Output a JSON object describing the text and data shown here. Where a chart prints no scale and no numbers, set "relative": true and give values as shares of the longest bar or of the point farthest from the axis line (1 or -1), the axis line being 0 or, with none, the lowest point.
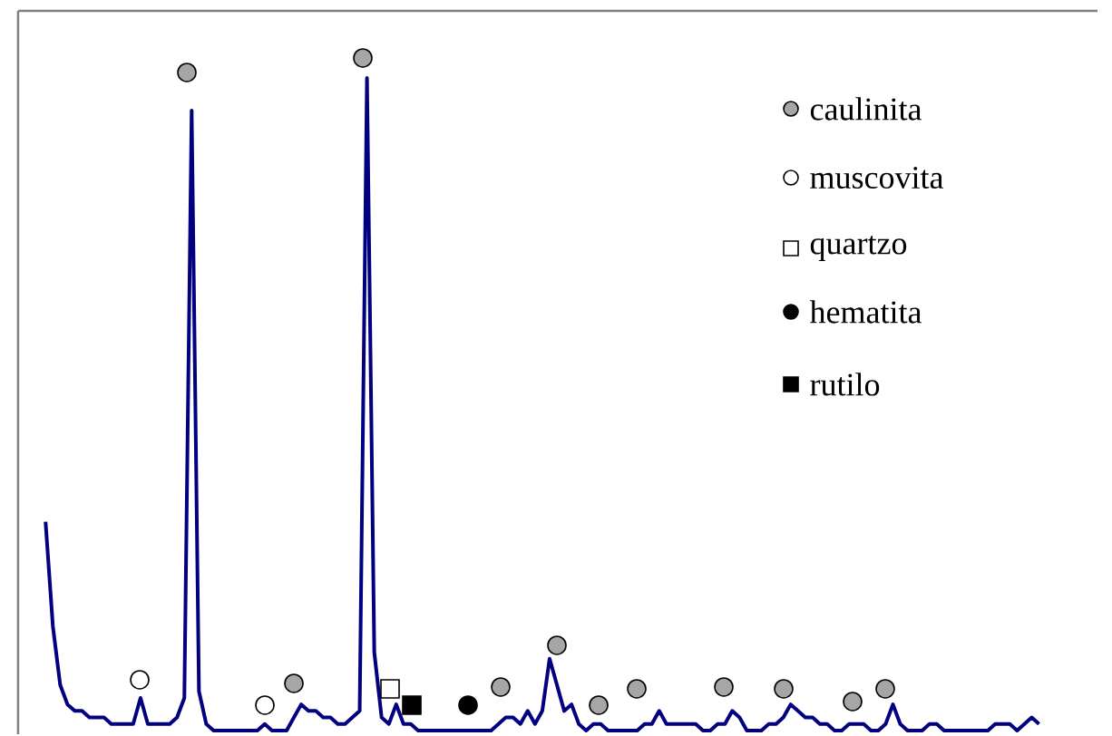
{
  "chart_data": {
    "type": "line",
    "relative": true,
    "categories": [
      null,
      null,
      null,
      null,
      null,
      null,
      null,
      null,
      null,
      null,
      null,
      null,
      null,
      null,
      null,
      null,
      null,
      null,
      null,
      null,
      null,
      null,
      null,
      null,
      null,
      null,
      null,
      null,
      null,
      null,
      null,
      null,
      null,
      null,
      null,
      null,
      null,
      null,
      null,
      null,
      null,
      null,
      null,
      null,
      null,
      null,
      null,
      null,
      null,
      null,
      null,
      null,
      null,
      null,
      null,
      null,
      null,
      null,
      null,
      null,
      null,
      null,
      null,
      null,
      null,
      null,
      null,
      null,
      null,
      null,
      null,
      null,
      null,
      null,
      null,
      null,
      null,
      null,
      null,
      null,
      null,
      null,
      null,
      null,
      null,
      null,
      null,
      null,
      null,
      null,
      null,
      null,
      null,
      null,
      null,
      null,
      null,
      null,
      null,
      null,
      null,
      null,
      null,
      null,
      null,
      null,
      null,
      null,
      null,
      null,
      null,
      null,
      null,
      null,
      null,
      null,
      null,
      null,
      null,
      null,
      null,
      null,
      null,
      null,
      null,
      null,
      null,
      null,
      null,
      null,
      null,
      null,
      null,
      null,
      null,
      null,
      null
    ],
    "series": [
      {
        "color": "#000080",
        "values": [
          0.32,
          0.16,
          0.07,
          0.04,
          0.03,
          0.03,
          0.02,
          0.02,
          0.02,
          0.01,
          0.01,
          0.01,
          0.01,
          0.05,
          0.01,
          0.01,
          0.01,
          0.01,
          0.02,
          0.05,
          0.95,
          0.06,
          0.01,
          0,
          0,
          0,
          0,
          0,
          0,
          0,
          0.01,
          0,
          0,
          0,
          0.02,
          0.04,
          0.03,
          0.03,
          0.02,
          0.02,
          0.01,
          0.01,
          0.02,
          0.03,
          1,
          0.12,
          0.02,
          0.01,
          0.04,
          0.01,
          0.01,
          0,
          0,
          0,
          0,
          0,
          0,
          0,
          0,
          0,
          0,
          0,
          0.01,
          0.02,
          0.02,
          0.01,
          0.03,
          0.01,
          0.03,
          0.11,
          0.07,
          0.03,
          0.04,
          0.01,
          0,
          0.01,
          0.01,
          0,
          0,
          0,
          0,
          0,
          0.01,
          0.01,
          0.03,
          0.01,
          0.01,
          0.01,
          0.01,
          0.01,
          0,
          0,
          0.01,
          0.01,
          0.03,
          0.02,
          0,
          0,
          0,
          0.01,
          0.01,
          0.02,
          0.04,
          0.03,
          0.02,
          0.02,
          0.01,
          0.01,
          0,
          0,
          0.01,
          0.01,
          0.01,
          0,
          0,
          0.01,
          0.04,
          0.01,
          0,
          0,
          0,
          0.01,
          0.01,
          0,
          0,
          0,
          0,
          0,
          0,
          0,
          0.01,
          0.01,
          0.01,
          0,
          0.01,
          0.02,
          0.01
        ]
      }
    ],
    "annotations": [
      "caulinita",
      "muscovita",
      "quartzo",
      "hematita",
      "rutilo"
    ]
  }
}
